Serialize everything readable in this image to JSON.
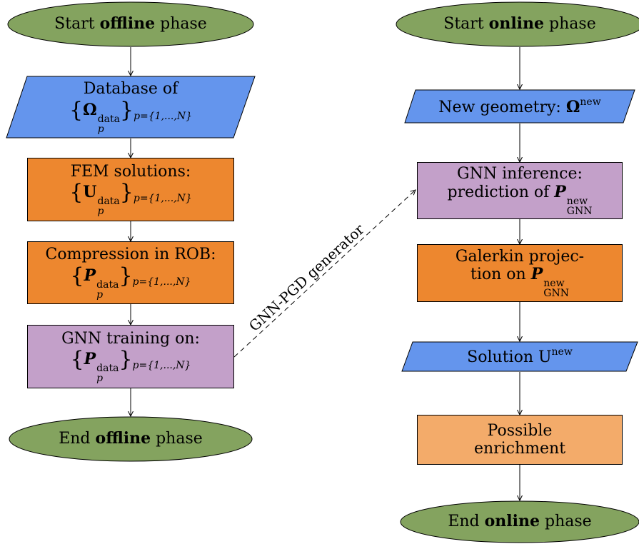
{
  "colors": {
    "terminal": "#84a35f",
    "io": "#6495ed",
    "process_orange": "#ed872f",
    "process_light": "#f3ab6a",
    "process_purple": "#c3a0c9",
    "stroke": "#000000"
  },
  "offline": {
    "start": {
      "pre": "Start ",
      "bold": "offline",
      "post": " phase"
    },
    "database": {
      "line1": "Database of",
      "symbol": "Ω",
      "sup": "data",
      "sub": "p",
      "range": "p={1,...,N}"
    },
    "fem": {
      "line1": "FEM solutions:",
      "symbol": "U",
      "sup": "data",
      "sub": "p",
      "range": "p={1,...,N}"
    },
    "compression": {
      "line1": "Compression in ROB:",
      "symbol": "P",
      "sup": "data",
      "sub": "p",
      "range": "p={1,...,N}"
    },
    "training": {
      "line1": "GNN training on:",
      "symbol": "P",
      "sup": "data",
      "sub": "p",
      "range": "p={1,...,N}"
    },
    "end": {
      "pre": "End ",
      "bold": "offline",
      "post": " phase"
    }
  },
  "online": {
    "start": {
      "pre": "Start ",
      "bold": "online",
      "post": " phase"
    },
    "geometry": {
      "text": "New geometry: ",
      "symbol": "Ω",
      "sup": "new"
    },
    "inference": {
      "line1": "GNN inference:",
      "line2": "prediction of ",
      "symbol": "P",
      "sup": "new",
      "sub": "GNN"
    },
    "galerkin": {
      "line1": "Galerkin projec-",
      "line2": "tion on ",
      "symbol": "P",
      "sup": "new",
      "sub": "GNN"
    },
    "solution": {
      "text": "Solution U",
      "sup": "new"
    },
    "enrichment": {
      "line1": "Possible",
      "line2": "enrichment"
    },
    "end": {
      "pre": "End ",
      "bold": "online",
      "post": " phase"
    }
  },
  "connector_label": "GNN-PGD generator"
}
